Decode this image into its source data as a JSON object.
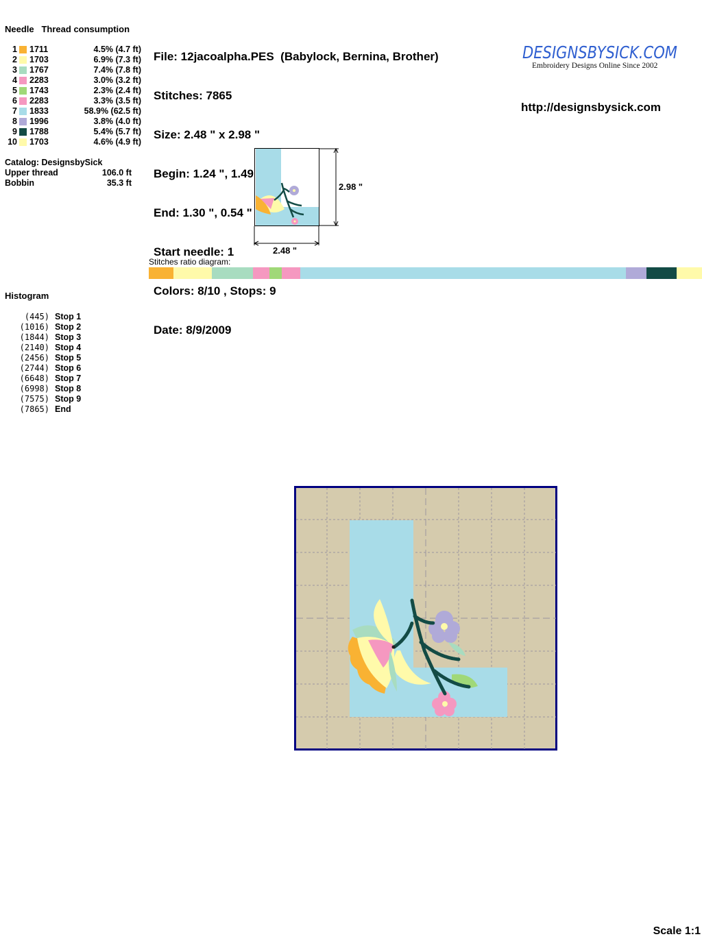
{
  "threads": {
    "header_needle": "Needle",
    "header_consumption": "Thread consumption",
    "items": [
      {
        "needle": "1",
        "color": "#F9B233",
        "code": "1711",
        "percent": 4.5,
        "consumption": "4.5% (4.7 ft)"
      },
      {
        "needle": "2",
        "color": "#FFFAAA",
        "code": "1703",
        "percent": 6.9,
        "consumption": "6.9% (7.3 ft)"
      },
      {
        "needle": "3",
        "color": "#A8DCC0",
        "code": "1767",
        "percent": 7.4,
        "consumption": "7.4% (7.8 ft)"
      },
      {
        "needle": "4",
        "color": "#F598C0",
        "code": "2283",
        "percent": 3.0,
        "consumption": "3.0% (3.2 ft)"
      },
      {
        "needle": "5",
        "color": "#A0D878",
        "code": "1743",
        "percent": 2.3,
        "consumption": "2.3% (2.4 ft)"
      },
      {
        "needle": "6",
        "color": "#F598C0",
        "code": "2283",
        "percent": 3.3,
        "consumption": "3.3% (3.5 ft)"
      },
      {
        "needle": "7",
        "color": "#A8DCE8",
        "code": "1833",
        "percent": 58.9,
        "consumption": "58.9% (62.5 ft)"
      },
      {
        "needle": "8",
        "color": "#B0AAD8",
        "code": "1996",
        "percent": 3.8,
        "consumption": "3.8% (4.0 ft)"
      },
      {
        "needle": "9",
        "color": "#134B45",
        "code": "1788",
        "percent": 5.4,
        "consumption": "5.4% (5.7 ft)"
      },
      {
        "needle": "10",
        "color": "#FFFAAA",
        "code": "1703",
        "percent": 4.6,
        "consumption": "4.6% (4.9 ft)"
      }
    ]
  },
  "summary": {
    "catalog": "Catalog: DesignsbySick",
    "upper_thread_label": "Upper thread",
    "upper_thread_value": "106.0 ft",
    "bobbin_label": "Bobbin",
    "bobbin_value": "35.3 ft"
  },
  "info": {
    "file": "File: 12jacoalpha.PES  (Babylock, Bernina, Brother)",
    "stitches": "Stitches: 7865",
    "size": "Size: 2.48 \" x 2.98 \"",
    "begin": "Begin: 1.24 \", 1.49 \"",
    "end": "End: 1.30 \", 0.54 \"",
    "start_needle": "Start needle: 1",
    "colors": "Colors: 8/10 , Stops: 9",
    "date": "Date: 8/9/2009"
  },
  "logo": {
    "text": "DesignsBySick.com",
    "tagline": "Embroidery Designs Online Since 2002"
  },
  "url": "http://designsbysick.com",
  "preview": {
    "width_label": "2.48 \"",
    "height_label": "2.98 \""
  },
  "ratio": {
    "label": "Stitches ratio diagram:"
  },
  "histogram": {
    "title": "Histogram",
    "items": [
      {
        "count": "(445)",
        "label": "Stop 1"
      },
      {
        "count": "(1016)",
        "label": "Stop 2"
      },
      {
        "count": "(1844)",
        "label": "Stop 3"
      },
      {
        "count": "(2140)",
        "label": "Stop 4"
      },
      {
        "count": "(2456)",
        "label": "Stop 5"
      },
      {
        "count": "(2744)",
        "label": "Stop 6"
      },
      {
        "count": "(6648)",
        "label": "Stop 7"
      },
      {
        "count": "(6998)",
        "label": "Stop 8"
      },
      {
        "count": "(7575)",
        "label": "Stop 9"
      },
      {
        "count": "(7865)",
        "label": "End"
      }
    ]
  },
  "design_colors": {
    "fabric": "#D5CBAD",
    "frame": "#000080",
    "grid": "#9A96A0"
  },
  "scale": "Scale 1:1"
}
